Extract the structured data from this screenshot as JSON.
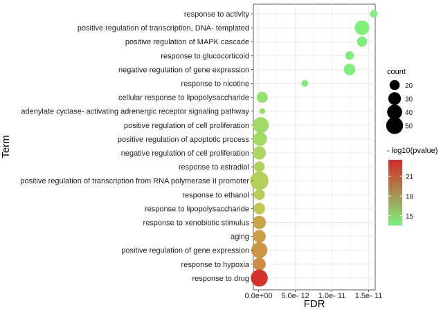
{
  "chart_data": {
    "type": "scatter",
    "title": "",
    "xlabel": "FDR",
    "ylabel": "Term",
    "x_ticks": [
      {
        "value": 0,
        "label": "0.0e+00"
      },
      {
        "value": 5e-12,
        "label": "5.0e- 12"
      },
      {
        "value": 1e-11,
        "label": "1.0e- 11"
      },
      {
        "value": 1.5e-11,
        "label": "1.5e- 11"
      }
    ],
    "xlim": [
      -6e-13,
      1.65e-11
    ],
    "grid": true,
    "size_legend": {
      "title": "count",
      "values": [
        20,
        30,
        40,
        50
      ]
    },
    "color_legend": {
      "title": "- log10(pvalue)",
      "ticks": [
        21,
        18,
        15
      ],
      "range": [
        13.5,
        23.5
      ],
      "low_color": "#7cf07c",
      "high_color": "#d42b27"
    },
    "points": [
      {
        "term": "response to activity",
        "fdr": 1.57e-11,
        "count": 12,
        "neglog10p": 13.6
      },
      {
        "term": "positive regulation of transcription, DNA- templated",
        "fdr": 1.41e-11,
        "count": 38,
        "neglog10p": 13.6
      },
      {
        "term": "positive regulation of MAPK cascade",
        "fdr": 1.41e-11,
        "count": 20,
        "neglog10p": 13.6
      },
      {
        "term": "response to glucocorticoid",
        "fdr": 1.24e-11,
        "count": 15,
        "neglog10p": 13.7
      },
      {
        "term": "negative regulation of gene expression",
        "fdr": 1.24e-11,
        "count": 25,
        "neglog10p": 13.7
      },
      {
        "term": "response to nicotine",
        "fdr": 6.3e-12,
        "count": 10,
        "neglog10p": 14.0
      },
      {
        "term": "cellular response to lipopolysaccharide",
        "fdr": 5e-13,
        "count": 23,
        "neglog10p": 15.0
      },
      {
        "term": "adenylate cyclase- activating adrenergic receptor signaling pathway",
        "fdr": 5e-13,
        "count": 8,
        "neglog10p": 15.1
      },
      {
        "term": "positive regulation of cell proliferation",
        "fdr": 3e-13,
        "count": 45,
        "neglog10p": 15.6
      },
      {
        "term": "positive regulation of apoptotic process",
        "fdr": 2e-13,
        "count": 35,
        "neglog10p": 16.0
      },
      {
        "term": "negative regulation of cell proliferation",
        "fdr": 1e-13,
        "count": 32,
        "neglog10p": 16.2
      },
      {
        "term": "response to estradiol",
        "fdr": 1e-13,
        "count": 22,
        "neglog10p": 16.5
      },
      {
        "term": "positive regulation of transcription from RNA polymerase II promoter",
        "fdr": 1e-13,
        "count": 58,
        "neglog10p": 16.8
      },
      {
        "term": "response to ethanol",
        "fdr": 1e-13,
        "count": 23,
        "neglog10p": 17.1
      },
      {
        "term": "response to lipopolysaccharide",
        "fdr": 1e-13,
        "count": 25,
        "neglog10p": 17.6
      },
      {
        "term": "response to xenobiotic stimulus",
        "fdr": 1e-13,
        "count": 32,
        "neglog10p": 19.2
      },
      {
        "term": "aging",
        "fdr": 1e-13,
        "count": 30,
        "neglog10p": 19.4
      },
      {
        "term": "positive regulation of gene expression",
        "fdr": 1e-13,
        "count": 45,
        "neglog10p": 19.7
      },
      {
        "term": "response to hypoxia",
        "fdr": 1e-13,
        "count": 30,
        "neglog10p": 20.0
      },
      {
        "term": "response to drug",
        "fdr": 1e-13,
        "count": 50,
        "neglog10p": 23.3
      }
    ]
  }
}
